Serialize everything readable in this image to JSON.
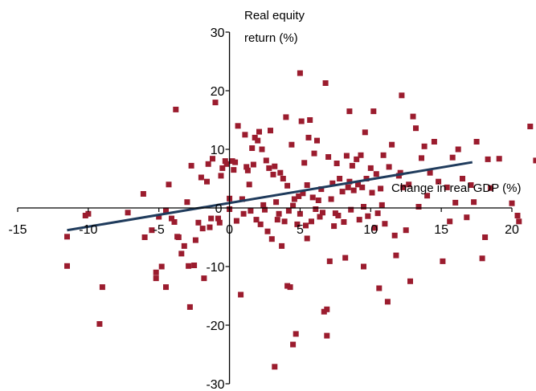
{
  "chart_data": {
    "type": "scatter",
    "title": "",
    "xlabel": "Change in real GDP (%)",
    "ylabel_lines": [
      "Real equity",
      "return (%)"
    ],
    "xlim": [
      -15,
      20
    ],
    "ylim": [
      -30,
      30
    ],
    "xticks": [
      -15,
      -10,
      -5,
      0,
      5,
      10,
      15,
      20
    ],
    "yticks": [
      -30,
      -20,
      -10,
      0,
      10,
      20,
      30
    ],
    "xtick_labels": [
      "-15",
      "-10",
      "-5",
      "0",
      "5",
      "10",
      "15",
      "20"
    ],
    "ytick_labels": [
      "-30",
      "-20",
      "-10",
      "0",
      "10",
      "20",
      "30"
    ],
    "grid": false,
    "legend": "none",
    "marker_color": "#9b1c2e",
    "trend_color": "#1f3b5c",
    "trendline": {
      "x": [
        -11.5,
        17.2
      ],
      "y": [
        -3.8,
        7.8
      ]
    },
    "points": [
      [
        -11.5,
        -4.9
      ],
      [
        -11.5,
        -9.9
      ],
      [
        -10.2,
        -1.3
      ],
      [
        -10.0,
        -1.0
      ],
      [
        -9.0,
        -13.5
      ],
      [
        -9.2,
        -19.8
      ],
      [
        -7.2,
        -0.8
      ],
      [
        -6.1,
        2.4
      ],
      [
        -6.0,
        -5.0
      ],
      [
        -5.5,
        -3.8
      ],
      [
        -5.2,
        -11.0
      ],
      [
        -5.2,
        -12.0
      ],
      [
        -5.0,
        -1.5
      ],
      [
        -4.8,
        -10.0
      ],
      [
        -4.5,
        -13.5
      ],
      [
        -4.5,
        -0.4
      ],
      [
        -4.3,
        4.0
      ],
      [
        -4.1,
        -1.8
      ],
      [
        -3.9,
        -2.4
      ],
      [
        -3.8,
        16.8
      ],
      [
        -3.7,
        -4.9
      ],
      [
        -3.6,
        -5.0
      ],
      [
        -3.4,
        -7.8
      ],
      [
        -3.2,
        -6.5
      ],
      [
        -3.0,
        1.0
      ],
      [
        -2.9,
        -9.9
      ],
      [
        -2.8,
        -16.9
      ],
      [
        -2.7,
        7.2
      ],
      [
        -2.5,
        -9.8
      ],
      [
        -2.4,
        -5.5
      ],
      [
        -2.2,
        -2.5
      ],
      [
        -2.0,
        5.2
      ],
      [
        -1.9,
        -3.5
      ],
      [
        -1.8,
        -12.0
      ],
      [
        -1.6,
        4.5
      ],
      [
        -1.5,
        7.5
      ],
      [
        -1.4,
        -3.3
      ],
      [
        -1.3,
        -1.8
      ],
      [
        -1.2,
        8.4
      ],
      [
        -1.0,
        18.0
      ],
      [
        -0.8,
        -1.8
      ],
      [
        -0.7,
        -2.5
      ],
      [
        -0.6,
        5.5
      ],
      [
        -0.5,
        6.8
      ],
      [
        -0.3,
        8.0
      ],
      [
        -0.2,
        7.5
      ],
      [
        0.0,
        1.6
      ],
      [
        0.0,
        -0.2
      ],
      [
        0.2,
        8.0
      ],
      [
        0.3,
        6.5
      ],
      [
        0.4,
        7.8
      ],
      [
        0.5,
        -2.2
      ],
      [
        0.6,
        14.0
      ],
      [
        0.8,
        -14.8
      ],
      [
        0.9,
        1.5
      ],
      [
        1.0,
        -1.0
      ],
      [
        1.1,
        12.5
      ],
      [
        1.2,
        7.0
      ],
      [
        1.3,
        6.4
      ],
      [
        1.4,
        4.0
      ],
      [
        1.5,
        -0.5
      ],
      [
        1.6,
        10.2
      ],
      [
        1.7,
        7.4
      ],
      [
        1.8,
        12.0
      ],
      [
        1.9,
        -2.0
      ],
      [
        2.0,
        11.5
      ],
      [
        2.1,
        13.0
      ],
      [
        2.2,
        -2.8
      ],
      [
        2.3,
        10.0
      ],
      [
        2.4,
        0.5
      ],
      [
        2.5,
        -0.3
      ],
      [
        2.6,
        8.1
      ],
      [
        2.7,
        -4.0
      ],
      [
        2.8,
        6.8
      ],
      [
        2.9,
        13.2
      ],
      [
        3.0,
        -5.3
      ],
      [
        3.1,
        5.7
      ],
      [
        3.2,
        7.1
      ],
      [
        3.2,
        -27.1
      ],
      [
        3.3,
        1.0
      ],
      [
        3.4,
        -2.0
      ],
      [
        3.5,
        -1.0
      ],
      [
        3.6,
        6.0
      ],
      [
        3.7,
        -6.5
      ],
      [
        3.8,
        5.0
      ],
      [
        3.9,
        -2.3
      ],
      [
        4.0,
        15.5
      ],
      [
        4.1,
        3.8
      ],
      [
        4.1,
        -13.3
      ],
      [
        4.2,
        -0.5
      ],
      [
        4.3,
        -13.5
      ],
      [
        4.4,
        10.8
      ],
      [
        4.5,
        0.4
      ],
      [
        4.5,
        -23.3
      ],
      [
        4.6,
        1.5
      ],
      [
        4.7,
        -21.5
      ],
      [
        4.8,
        -2.8
      ],
      [
        4.9,
        2.0
      ],
      [
        5.0,
        23.0
      ],
      [
        5.0,
        -1.0
      ],
      [
        5.1,
        14.8
      ],
      [
        5.2,
        2.5
      ],
      [
        5.3,
        7.7
      ],
      [
        5.4,
        -3.0
      ],
      [
        5.5,
        3.9
      ],
      [
        5.5,
        -5.2
      ],
      [
        5.6,
        12.0
      ],
      [
        5.7,
        15.0
      ],
      [
        5.8,
        -2.3
      ],
      [
        5.9,
        1.8
      ],
      [
        6.0,
        9.3
      ],
      [
        6.1,
        -0.2
      ],
      [
        6.2,
        11.5
      ],
      [
        6.3,
        1.3
      ],
      [
        6.4,
        -1.5
      ],
      [
        6.5,
        3.2
      ],
      [
        6.6,
        -0.8
      ],
      [
        6.7,
        -17.7
      ],
      [
        6.8,
        21.3
      ],
      [
        6.9,
        -21.8
      ],
      [
        6.9,
        -17.3
      ],
      [
        7.0,
        8.7
      ],
      [
        7.1,
        -9.1
      ],
      [
        7.2,
        1.5
      ],
      [
        7.3,
        4.2
      ],
      [
        7.4,
        -3.1
      ],
      [
        7.5,
        -0.9
      ],
      [
        7.6,
        7.6
      ],
      [
        7.7,
        -1.3
      ],
      [
        7.8,
        5.0
      ],
      [
        8.0,
        2.8
      ],
      [
        8.1,
        -2.4
      ],
      [
        8.2,
        -8.5
      ],
      [
        8.3,
        8.9
      ],
      [
        8.4,
        3.5
      ],
      [
        8.5,
        4.5
      ],
      [
        8.5,
        16.5
      ],
      [
        8.6,
        -0.3
      ],
      [
        8.7,
        7.2
      ],
      [
        8.8,
        3.0
      ],
      [
        9.0,
        8.3
      ],
      [
        9.1,
        4.0
      ],
      [
        9.2,
        -2.0
      ],
      [
        9.3,
        9.0
      ],
      [
        9.4,
        3.5
      ],
      [
        9.5,
        -10.0
      ],
      [
        9.5,
        0.2
      ],
      [
        9.6,
        12.9
      ],
      [
        9.7,
        5.0
      ],
      [
        9.8,
        -1.4
      ],
      [
        10.0,
        6.8
      ],
      [
        10.1,
        2.6
      ],
      [
        10.2,
        16.5
      ],
      [
        10.3,
        -3.4
      ],
      [
        10.4,
        5.8
      ],
      [
        10.5,
        -0.9
      ],
      [
        10.6,
        -13.7
      ],
      [
        10.7,
        3.3
      ],
      [
        10.8,
        0.5
      ],
      [
        10.9,
        9.0
      ],
      [
        11.0,
        -2.7
      ],
      [
        11.2,
        -16.0
      ],
      [
        11.3,
        7.0
      ],
      [
        11.5,
        10.8
      ],
      [
        11.7,
        -4.7
      ],
      [
        11.8,
        -8.1
      ],
      [
        12.0,
        5.5
      ],
      [
        12.1,
        6.0
      ],
      [
        12.2,
        19.2
      ],
      [
        12.3,
        3.5
      ],
      [
        12.5,
        -3.8
      ],
      [
        12.7,
        4.0
      ],
      [
        12.8,
        -12.5
      ],
      [
        13.0,
        15.6
      ],
      [
        13.2,
        13.6
      ],
      [
        13.4,
        0.2
      ],
      [
        13.6,
        8.5
      ],
      [
        13.8,
        10.5
      ],
      [
        14.0,
        2.1
      ],
      [
        14.2,
        6.0
      ],
      [
        14.5,
        11.3
      ],
      [
        14.8,
        4.5
      ],
      [
        15.1,
        -9.1
      ],
      [
        15.4,
        3.5
      ],
      [
        15.6,
        -2.3
      ],
      [
        15.8,
        8.6
      ],
      [
        16.0,
        0.9
      ],
      [
        16.2,
        10.0
      ],
      [
        16.5,
        5.0
      ],
      [
        16.8,
        -1.6
      ],
      [
        17.1,
        3.9
      ],
      [
        17.3,
        1.0
      ],
      [
        17.5,
        11.3
      ],
      [
        17.9,
        -8.6
      ],
      [
        18.1,
        -5.0
      ],
      [
        18.3,
        8.3
      ],
      [
        18.5,
        3.4
      ],
      [
        19.1,
        8.4
      ],
      [
        20.0,
        0.8
      ],
      [
        20.4,
        -1.3
      ],
      [
        20.5,
        -2.3
      ],
      [
        21.3,
        13.9
      ],
      [
        21.7,
        8.1
      ],
      [
        22.3,
        11.8
      ]
    ]
  }
}
